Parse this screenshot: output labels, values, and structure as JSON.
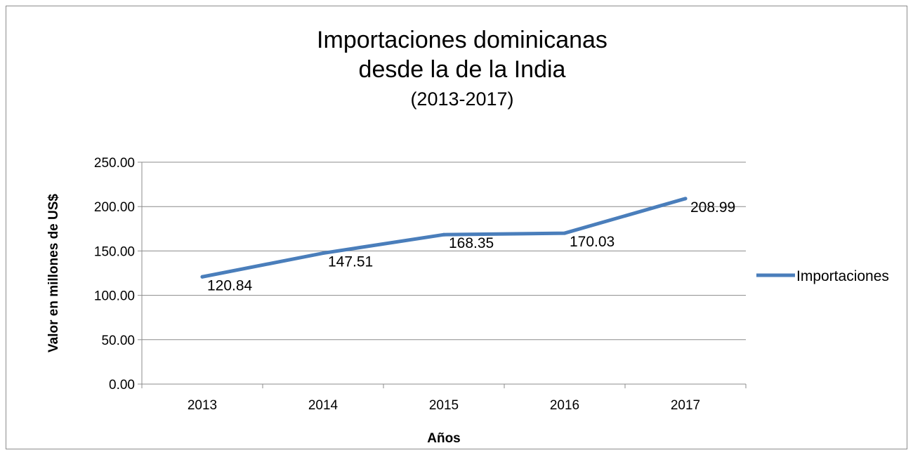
{
  "chart_data": {
    "type": "line",
    "title_lines": [
      "Importaciones dominicanas",
      "desde la de la India"
    ],
    "subtitle": "(2013-2017)",
    "xlabel": "Años",
    "ylabel": "Valor en millones de US$",
    "categories": [
      "2013",
      "2014",
      "2015",
      "2016",
      "2017"
    ],
    "series": [
      {
        "name": "Importaciones",
        "values": [
          120.84,
          147.51,
          168.35,
          170.03,
          208.99
        ],
        "labels": [
          "120.84",
          "147.51",
          "168.35",
          "170.03",
          "208.99"
        ],
        "color": "#4a7ebb"
      }
    ],
    "ylim": [
      0,
      250
    ],
    "yticks": [
      "0.00",
      "50.00",
      "100.00",
      "150.00",
      "200.00",
      "250.00"
    ],
    "grid": true,
    "legend_position": "right"
  }
}
